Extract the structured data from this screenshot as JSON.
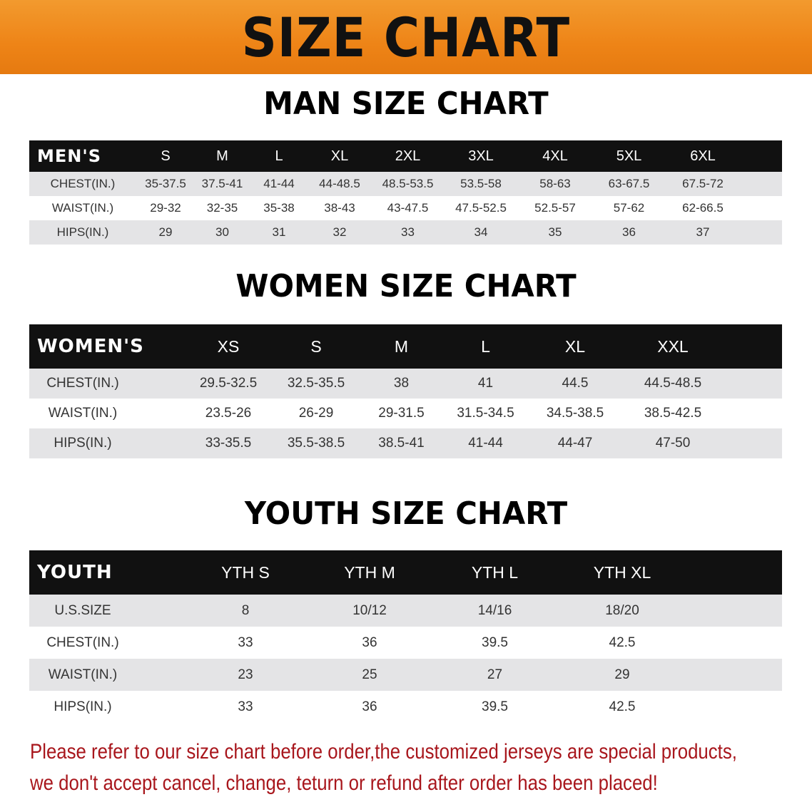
{
  "banner": {
    "title": "SIZE CHART",
    "color": "#ee8417"
  },
  "men": {
    "title": "MAN SIZE CHART",
    "header": [
      "MEN'S",
      "S",
      "M",
      "L",
      "XL",
      "2XL",
      "3XL",
      "4XL",
      "5XL",
      "6XL"
    ],
    "rows": [
      [
        "CHEST(IN.)",
        "35-37.5",
        "37.5-41",
        "41-44",
        "44-48.5",
        "48.5-53.5",
        "53.5-58",
        "58-63",
        "63-67.5",
        "67.5-72"
      ],
      [
        "WAIST(IN.)",
        "29-32",
        "32-35",
        "35-38",
        "38-43",
        "43-47.5",
        "47.5-52.5",
        "52.5-57",
        "57-62",
        "62-66.5"
      ],
      [
        "HIPS(IN.)",
        "29",
        "30",
        "31",
        "32",
        "33",
        "34",
        "35",
        "36",
        "37"
      ]
    ]
  },
  "women": {
    "title": "WOMEN SIZE CHART",
    "header": [
      "WOMEN'S",
      "XS",
      "S",
      "M",
      "L",
      "XL",
      "XXL"
    ],
    "rows": [
      [
        "CHEST(IN.)",
        "29.5-32.5",
        "32.5-35.5",
        "38",
        "41",
        "44.5",
        "44.5-48.5"
      ],
      [
        "WAIST(IN.)",
        "23.5-26",
        "26-29",
        "29-31.5",
        "31.5-34.5",
        "34.5-38.5",
        "38.5-42.5"
      ],
      [
        "HIPS(IN.)",
        "33-35.5",
        "35.5-38.5",
        "38.5-41",
        "41-44",
        "44-47",
        "47-50"
      ]
    ]
  },
  "youth": {
    "title": "YOUTH SIZE CHART",
    "header": [
      "YOUTH",
      "YTH S",
      "YTH M",
      "YTH L",
      "YTH XL"
    ],
    "rows": [
      [
        "U.S.SIZE",
        "8",
        "10/12",
        "14/16",
        "18/20"
      ],
      [
        "CHEST(IN.)",
        "33",
        "36",
        "39.5",
        "42.5"
      ],
      [
        "WAIST(IN.)",
        "23",
        "25",
        "27",
        "29"
      ],
      [
        "HIPS(IN.)",
        "33",
        "36",
        "39.5",
        "42.5"
      ]
    ]
  },
  "note": {
    "line1": "Please refer to our size chart before order,the customized jerseys are special products,",
    "line2": "we don't accept cancel, change, teturn or refund after order has been placed!",
    "color": "#a8161c"
  }
}
